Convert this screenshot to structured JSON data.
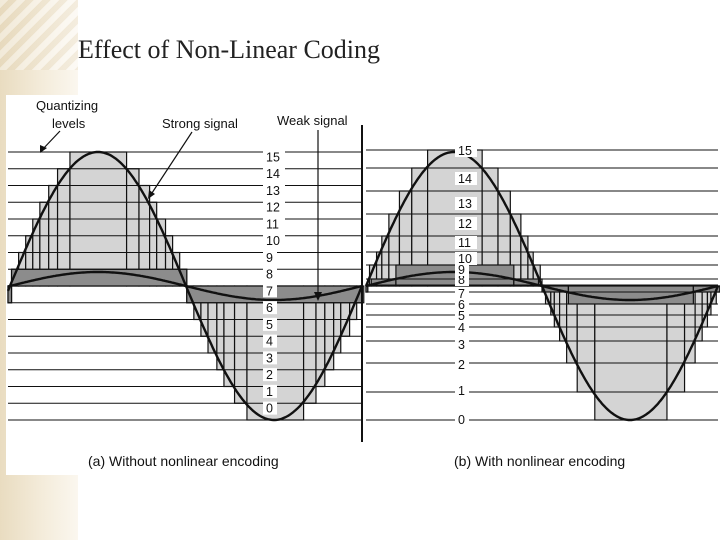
{
  "slide": {
    "title": "Effect of Non-Linear Coding"
  },
  "diagram": {
    "annotations": {
      "quantizing_levels_line1": "Quantizing",
      "quantizing_levels_line2": "levels",
      "strong_signal": "Strong signal",
      "weak_signal": "Weak signal"
    },
    "panel_a": {
      "caption": "(a) Without nonlinear encoding",
      "level_labels": [
        "0",
        "1",
        "2",
        "3",
        "4",
        "5",
        "6",
        "7",
        "8",
        "9",
        "10",
        "11",
        "12",
        "13",
        "14",
        "15"
      ]
    },
    "panel_b": {
      "caption": "(b) With nonlinear encoding",
      "level_labels": [
        "0",
        "1",
        "2",
        "3",
        "4",
        "5",
        "6",
        "7",
        "8",
        "9",
        "10",
        "11",
        "12",
        "13",
        "14",
        "15"
      ]
    },
    "colors": {
      "strong_fill": "#d4d4d4",
      "weak_fill": "#8c8c8c",
      "line": "#111111"
    }
  }
}
